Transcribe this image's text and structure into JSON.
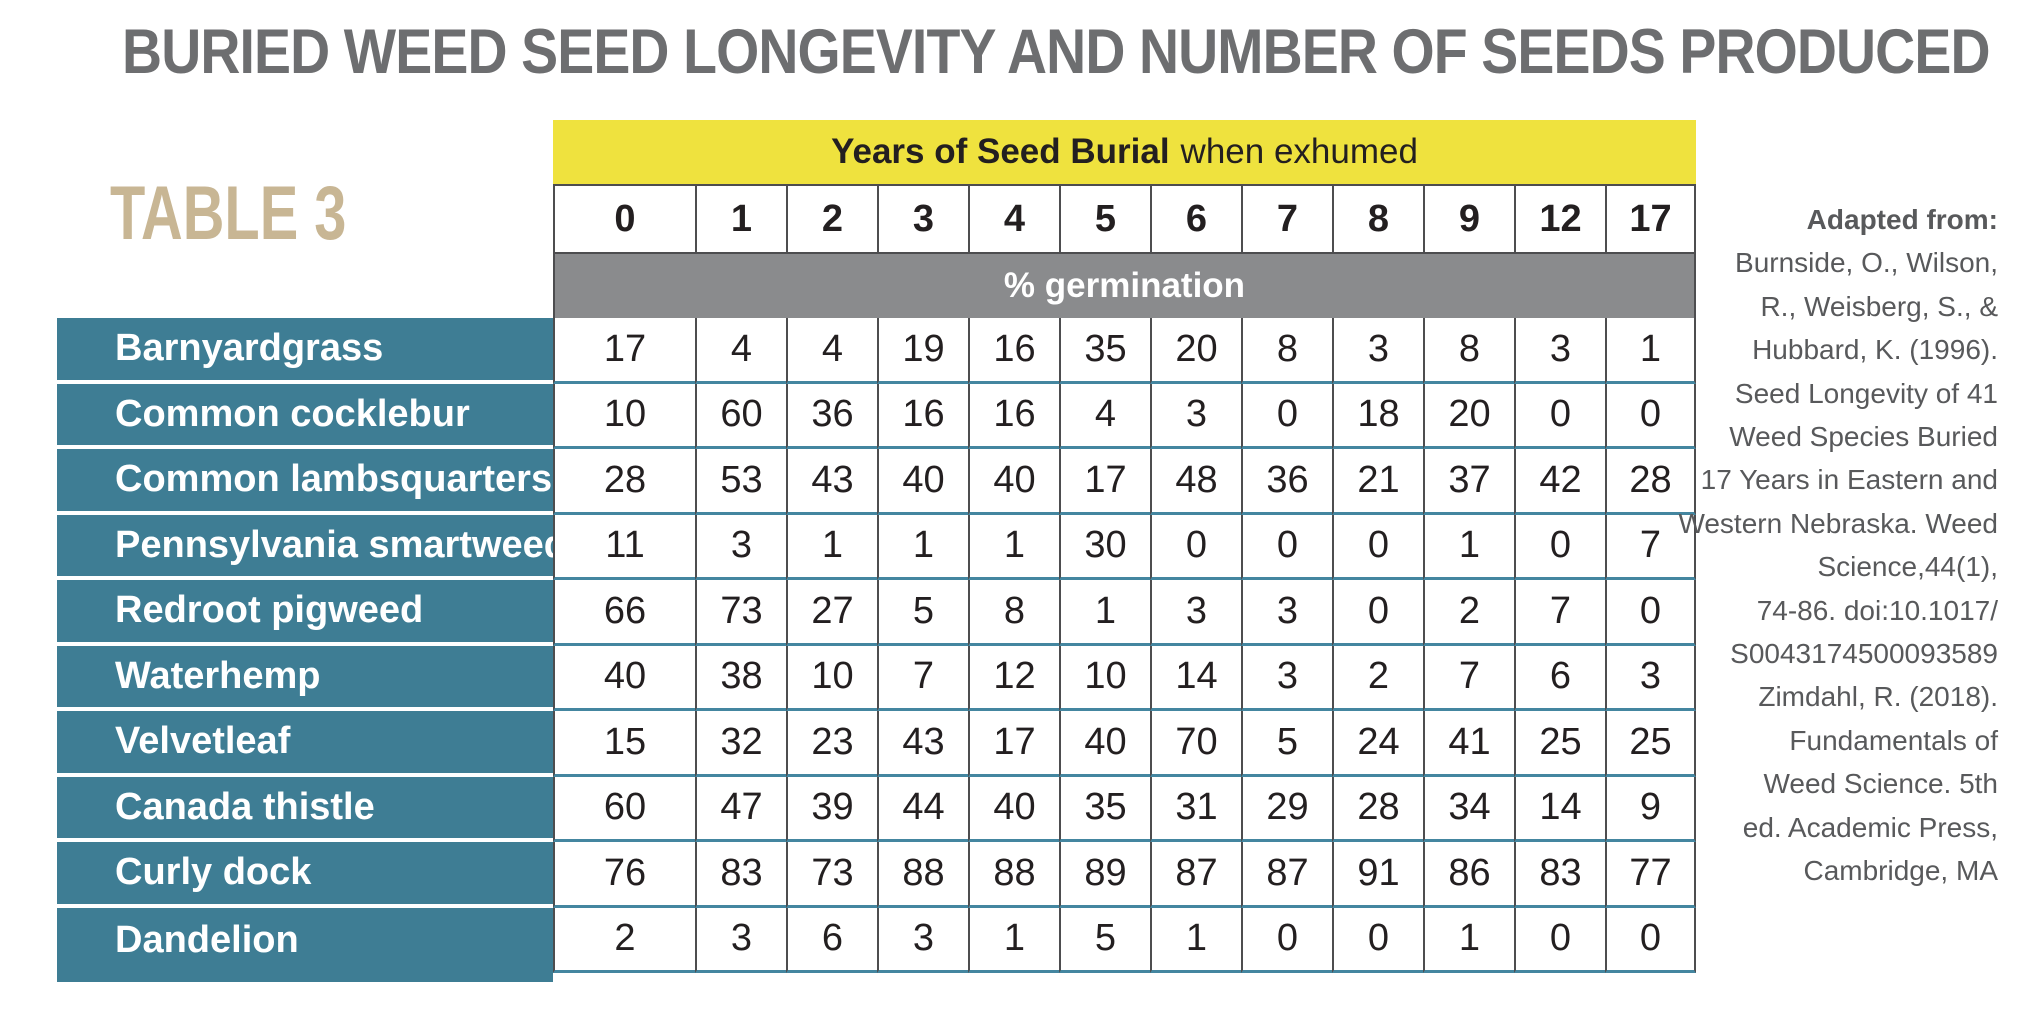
{
  "title": "BURIED WEED SEED LONGEVITY AND NUMBER OF SEEDS PRODUCED",
  "table_label": "TABLE 3",
  "header": {
    "band_bold": "Years of Seed Burial",
    "band_regular": "when exhumed",
    "subheader": "% germination"
  },
  "chart_data": {
    "type": "table",
    "title": "BURIED WEED SEED LONGEVITY AND NUMBER OF SEEDS PRODUCED",
    "table_label": "TABLE 3",
    "column_group_label": "Years of Seed Burial when exhumed",
    "unit_label": "% germination",
    "columns": [
      "0",
      "1",
      "2",
      "3",
      "4",
      "5",
      "6",
      "7",
      "8",
      "9",
      "12",
      "17"
    ],
    "rows": [
      {
        "label": "Barnyardgrass",
        "values": [
          17,
          4,
          4,
          19,
          16,
          35,
          20,
          8,
          3,
          8,
          3,
          1
        ]
      },
      {
        "label": "Common cocklebur",
        "values": [
          10,
          60,
          36,
          16,
          16,
          4,
          3,
          0,
          18,
          20,
          0,
          0
        ]
      },
      {
        "label": "Common lambsquarters",
        "values": [
          28,
          53,
          43,
          40,
          40,
          17,
          48,
          36,
          21,
          37,
          42,
          28
        ]
      },
      {
        "label": "Pennsylvania smartweed",
        "values": [
          11,
          3,
          1,
          1,
          1,
          30,
          0,
          0,
          0,
          1,
          0,
          7
        ]
      },
      {
        "label": "Redroot pigweed",
        "values": [
          66,
          73,
          27,
          5,
          8,
          1,
          3,
          3,
          0,
          2,
          7,
          0
        ]
      },
      {
        "label": "Waterhemp",
        "values": [
          40,
          38,
          10,
          7,
          12,
          10,
          14,
          3,
          2,
          7,
          6,
          3
        ]
      },
      {
        "label": "Velvetleaf",
        "values": [
          15,
          32,
          23,
          43,
          17,
          40,
          70,
          5,
          24,
          41,
          25,
          25
        ]
      },
      {
        "label": "Canada thistle",
        "values": [
          60,
          47,
          39,
          44,
          40,
          35,
          31,
          29,
          28,
          34,
          14,
          9
        ]
      },
      {
        "label": "Curly dock",
        "values": [
          76,
          83,
          73,
          88,
          88,
          89,
          87,
          87,
          91,
          86,
          83,
          77
        ]
      },
      {
        "label": "Dandelion",
        "values": [
          2,
          3,
          6,
          3,
          1,
          5,
          1,
          0,
          0,
          1,
          0,
          0
        ]
      }
    ]
  },
  "citation": {
    "lead": "Adapted from:",
    "lines": [
      "Burnside, O., Wilson,",
      "R., Weisberg, S., &",
      "Hubbard, K. (1996).",
      "Seed Longevity of 41",
      "Weed Species Buried",
      "17 Years in Eastern and",
      "Western Nebraska. Weed",
      "Science,44(1),",
      "74-86. doi:10.1017/",
      "S0043174500093589",
      "Zimdahl, R. (2018).",
      "Fundamentals of",
      "Weed Science. 5th",
      "ed. Academic Press,",
      "Cambridge, MA"
    ]
  },
  "colors": {
    "title_gray": "#6d6e70",
    "table_label_tan": "#c8b694",
    "header_yellow": "#efe23e",
    "subheader_gray": "#8a8b8d",
    "row_label_teal": "#3e7d94",
    "row_separator_teal": "#4486a0",
    "cell_border_dark": "#4d4d4f",
    "citation_gray": "#58595b"
  }
}
